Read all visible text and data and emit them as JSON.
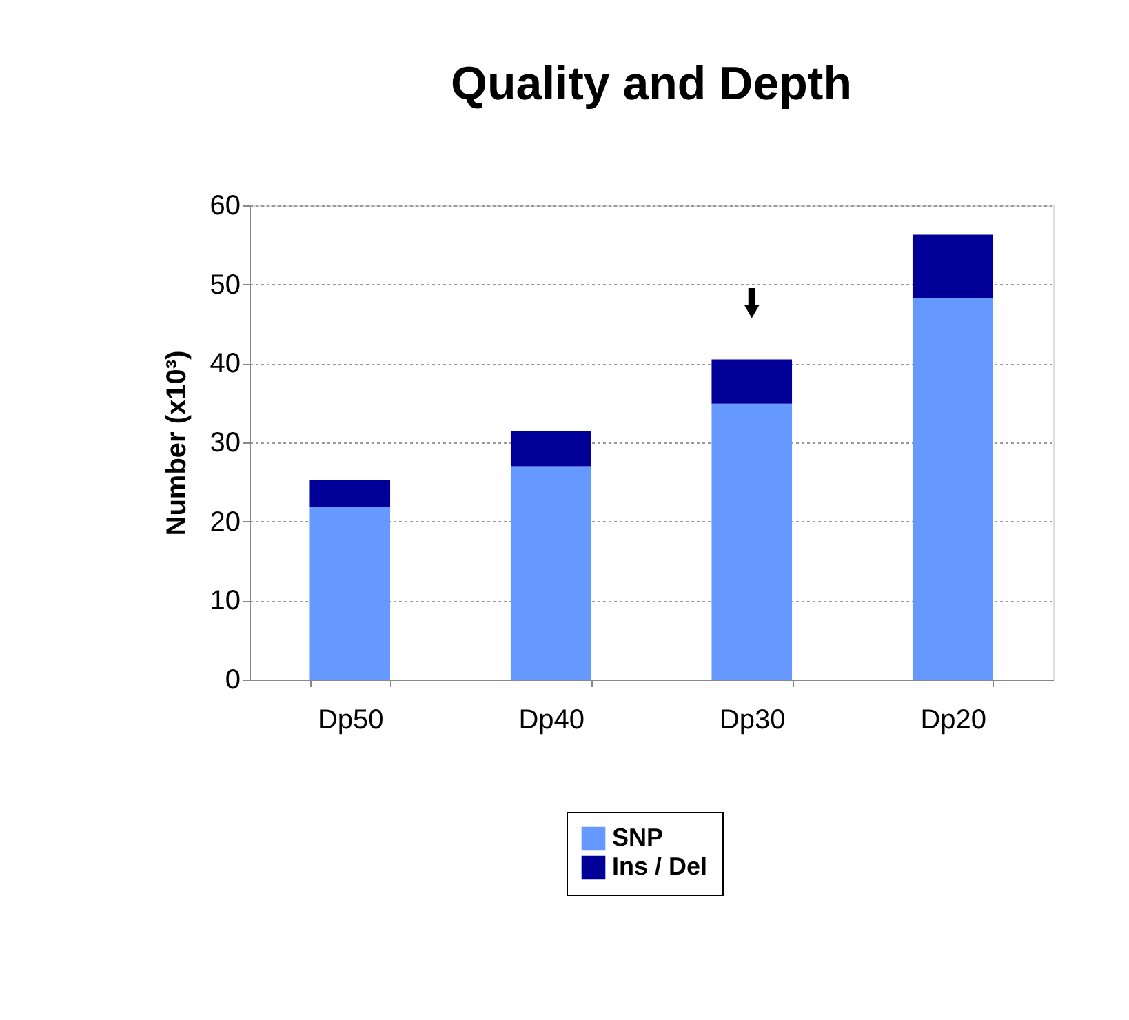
{
  "chart_data": {
    "type": "bar",
    "title": "Quality and Depth",
    "ylabel": "Number (x10³)",
    "categories": [
      "Dp50",
      "Dp40",
      "Dp30",
      "Dp20"
    ],
    "series": [
      {
        "name": "SNP",
        "color": "#6699ff",
        "values": [
          21.8,
          27.0,
          34.9,
          48.3
        ]
      },
      {
        "name": "Ins / Del",
        "color": "#000099",
        "values": [
          3.5,
          4.4,
          5.6,
          8.0
        ]
      }
    ],
    "stacked": true,
    "ylim": [
      0,
      60
    ],
    "yticks": [
      0,
      10,
      20,
      30,
      40,
      50,
      60
    ],
    "grid": "y",
    "legend": "bottom"
  }
}
